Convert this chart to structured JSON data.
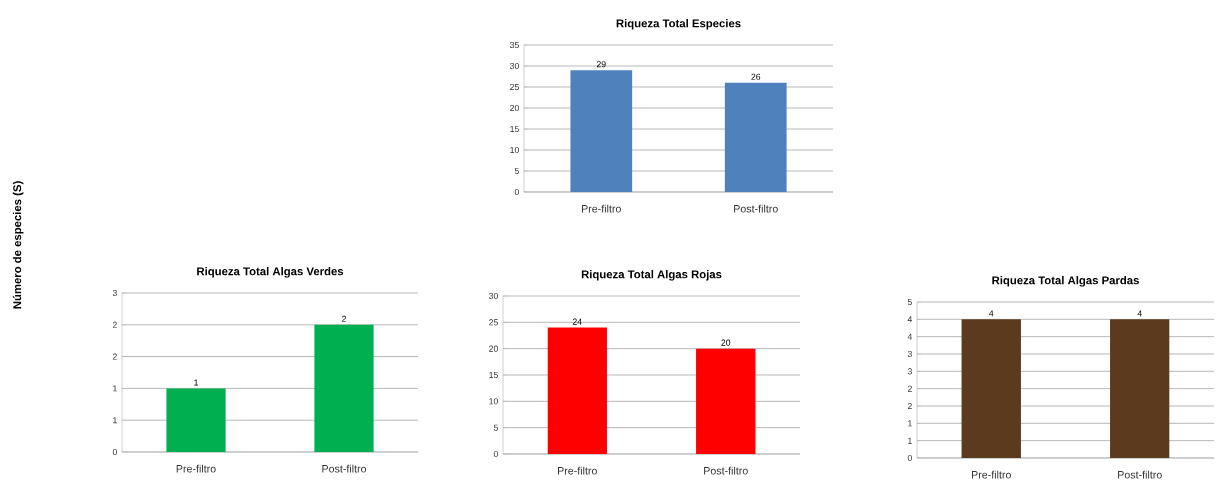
{
  "chart_data": [
    {
      "type": "bar",
      "title": "Riqueza Total Especies",
      "categories": [
        "Pre-filtro",
        "Post-filtro"
      ],
      "values": [
        29,
        26
      ],
      "color": "#4f81bd",
      "ylim": [
        0,
        35
      ],
      "yticks": [
        0,
        5,
        10,
        15,
        20,
        25,
        30,
        35
      ],
      "grid": "y",
      "data_labels": true
    },
    {
      "type": "bar",
      "title": "Riqueza Total Algas Verdes",
      "ylabel": "Número de especies (S)",
      "categories": [
        "Pre-filtro",
        "Post-filtro"
      ],
      "values": [
        1,
        2
      ],
      "color": "#00b050",
      "ylim": [
        0,
        2.5
      ],
      "yticks": [
        0,
        {
          "value": 0.5,
          "label": "1"
        },
        {
          "value": 1,
          "label": "1"
        },
        {
          "value": 1.5,
          "label": "2"
        },
        {
          "value": 2,
          "label": "2"
        },
        {
          "value": 2.5,
          "label": "3"
        }
      ],
      "grid": "y",
      "data_labels": true
    },
    {
      "type": "bar",
      "title": "Riqueza Total Algas Rojas",
      "categories": [
        "Pre-filtro",
        "Post-filtro"
      ],
      "values": [
        24,
        20
      ],
      "color": "#ff0000",
      "ylim": [
        0,
        30
      ],
      "yticks": [
        0,
        5,
        10,
        15,
        20,
        25,
        30
      ],
      "grid": "y",
      "data_labels": true
    },
    {
      "type": "bar",
      "title": "Riqueza Total Algas Pardas",
      "categories": [
        "Pre-filtro",
        "Post-filtro"
      ],
      "values": [
        4,
        4
      ],
      "color": "#5b3a1e",
      "ylim": [
        0,
        4.5
      ],
      "yticks": [
        0,
        {
          "value": 0.5,
          "label": "1"
        },
        {
          "value": 1,
          "label": "1"
        },
        {
          "value": 1.5,
          "label": "2"
        },
        {
          "value": 2,
          "label": "2"
        },
        {
          "value": 2.5,
          "label": "3"
        },
        {
          "value": 3,
          "label": "3"
        },
        {
          "value": 3.5,
          "label": "4"
        },
        {
          "value": 4,
          "label": "4"
        },
        {
          "value": 4.5,
          "label": "5"
        }
      ],
      "grid": "y",
      "data_labels": true
    }
  ]
}
